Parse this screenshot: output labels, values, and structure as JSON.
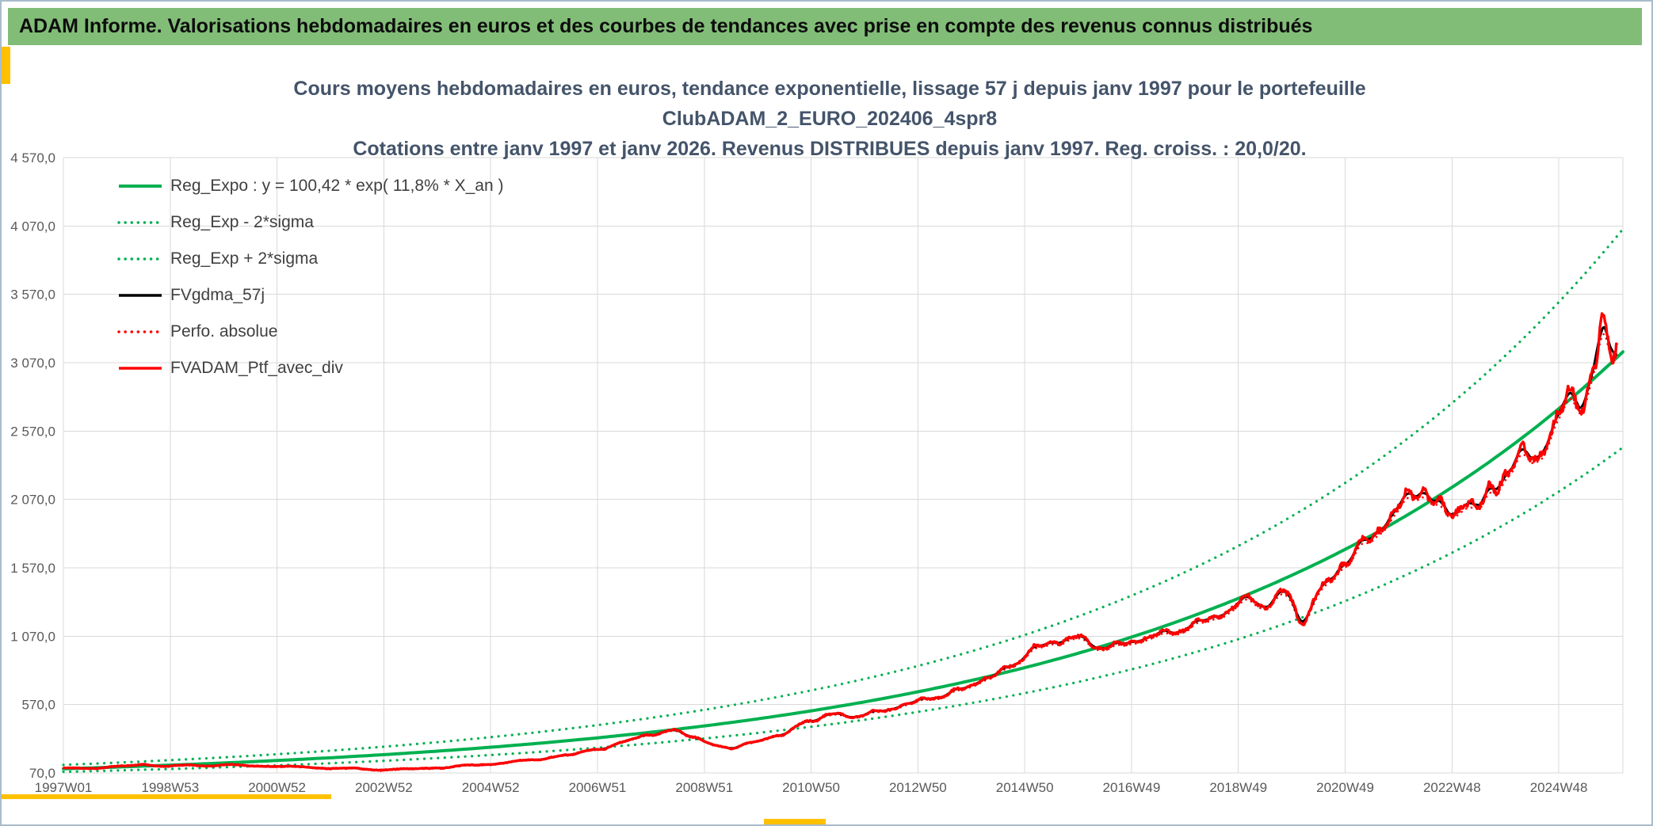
{
  "header": {
    "title": "ADAM Informe. Valorisations hebdomadaires en euros et des courbes de tendances avec prise en compte des revenus connus distribués",
    "background_color": "#82BD78"
  },
  "accents": {
    "color": "#FFC000"
  },
  "chart_data": {
    "type": "line",
    "title_lines": [
      "Cours moyens hebdomadaires en euros, tendance exponentielle, lissage 57 j depuis janv 1997 pour le portefeuille",
      "ClubADAM_2_EURO_202406_4spr8",
      "Cotations entre janv 1997 et janv 2026. Revenus DISTRIBUES depuis janv 1997. Reg. croiss. : 20,0/20."
    ],
    "y_axis": {
      "min": 70,
      "max": 4570,
      "tick_step": 500,
      "tick_labels": [
        "70,0",
        "570,0",
        "1 070,0",
        "1 570,0",
        "2 070,0",
        "2 570,0",
        "3 070,0",
        "3 570,0",
        "4 070,0",
        "4 570,0"
      ]
    },
    "x_axis": {
      "tick_labels": [
        "1997W01",
        "1998W53",
        "2000W52",
        "2002W52",
        "2004W52",
        "2006W51",
        "2008W51",
        "2010W50",
        "2012W50",
        "2014W50",
        "2016W49",
        "2018W49",
        "2020W49",
        "2022W48",
        "2024W48"
      ],
      "years_per_tick": 2,
      "domain_years": 29.2
    },
    "regression": {
      "formula_label": "y = 100,42 * exp( 11,8% *  X_an )",
      "a": 100.42,
      "annual_rate_pct": 11.8,
      "sigma_band_factor": 1.285
    },
    "legend": [
      {
        "id": "reg-expo",
        "label": "Reg_Expo : y = 100,42 * exp( 11,8% *  X_an )",
        "color": "#00B050",
        "style": "solid",
        "width": 4
      },
      {
        "id": "reg-minus-2sigma",
        "label": "Reg_Exp - 2*sigma",
        "color": "#00B050",
        "style": "dotted",
        "width": 3.2
      },
      {
        "id": "reg-plus-2sigma",
        "label": "Reg_Exp + 2*sigma",
        "color": "#00B050",
        "style": "dotted",
        "width": 3.2
      },
      {
        "id": "fvgdma-57j",
        "label": "FVgdma_57j",
        "color": "#000000",
        "style": "solid",
        "width": 3
      },
      {
        "id": "perfo-absolue",
        "label": "Perfo. absolue",
        "color": "#FF0000",
        "style": "dotted",
        "width": 2.6
      },
      {
        "id": "fvadam-ptf-avec-div",
        "label": "FVADAM_Ptf_avec_div",
        "color": "#FF0000",
        "style": "solid",
        "width": 3.4
      }
    ],
    "portfolio_series_anchors": {
      "t_years": [
        0,
        0.6,
        1.1,
        1.5,
        1.9,
        2.4,
        3,
        3.6,
        4.2,
        4.8,
        5.4,
        6,
        6.4,
        7,
        7.6,
        8.2,
        8.8,
        9.4,
        10,
        10.5,
        11,
        11.4,
        11.8,
        12.2,
        12.5,
        12.9,
        13.4,
        14,
        14.4,
        14.8,
        15.3,
        15.8,
        16.3,
        16.8,
        17.3,
        17.8,
        18.2,
        18.6,
        19,
        19.4,
        19.8,
        20.3,
        20.8,
        21.3,
        21.8,
        22.2,
        22.5,
        22.9,
        23.2,
        23.6,
        24,
        24.4,
        24.8,
        25.2,
        25.45,
        25.7,
        26,
        26.25,
        26.5,
        26.75,
        27.05,
        27.3,
        27.55,
        27.8,
        28.05,
        28.25,
        28.45,
        28.65,
        28.85,
        29,
        29.1
      ],
      "values": [
        102,
        107,
        118,
        132,
        120,
        124,
        128,
        122,
        116,
        108,
        100,
        94,
        97,
        108,
        124,
        143,
        165,
        200,
        240,
        300,
        350,
        385,
        330,
        275,
        252,
        290,
        350,
        450,
        505,
        480,
        520,
        575,
        620,
        680,
        760,
        870,
        980,
        1040,
        1060,
        990,
        1010,
        1060,
        1110,
        1170,
        1260,
        1350,
        1290,
        1390,
        1185,
        1430,
        1620,
        1760,
        1930,
        2090,
        2160,
        2030,
        1945,
        2080,
        2005,
        2140,
        2290,
        2410,
        2350,
        2530,
        2710,
        2840,
        2770,
        3050,
        3310,
        3080,
        3170
      ]
    },
    "colors": {
      "grid": "#D9D9D9",
      "axis_text": "#595959",
      "title": "#44546A"
    }
  }
}
